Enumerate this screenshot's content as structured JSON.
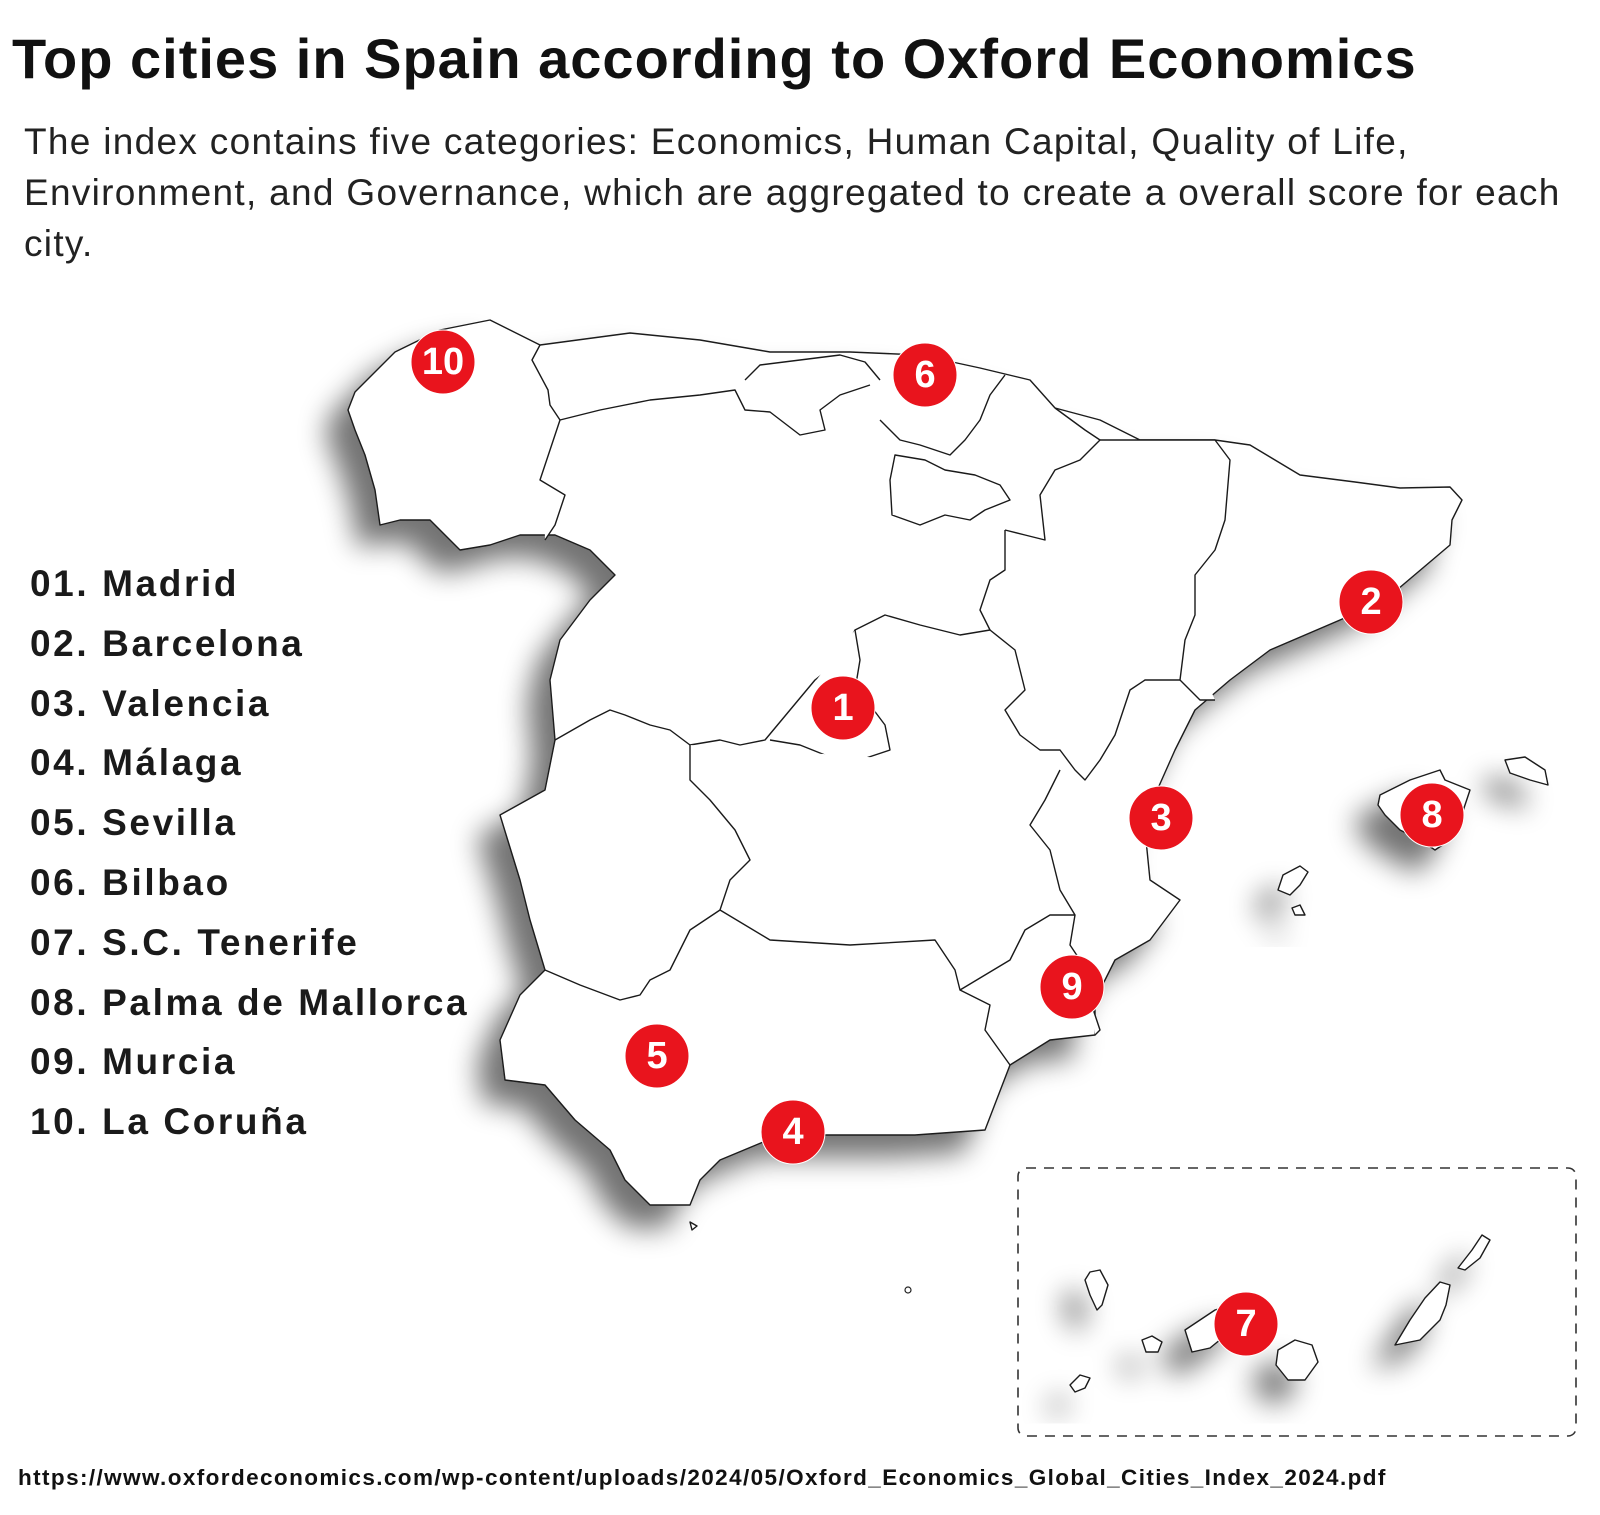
{
  "header": {
    "title": "Top cities in Spain according to Oxford Economics",
    "subtitle": "The index contains five categories: Economics, Human Capital, Quality of Life, Environment, and Governance, which are aggregated to create a overall score for each city."
  },
  "ranking": [
    {
      "rank": "01.",
      "city": "Madrid"
    },
    {
      "rank": "02.",
      "city": "Barcelona"
    },
    {
      "rank": "03.",
      "city": "Valencia"
    },
    {
      "rank": "04.",
      "city": "Málaga"
    },
    {
      "rank": "05.",
      "city": "Sevilla"
    },
    {
      "rank": "06.",
      "city": "Bilbao"
    },
    {
      "rank": "07.",
      "city": "S.C. Tenerife"
    },
    {
      "rank": "08.",
      "city": "Palma de Mallorca"
    },
    {
      "rank": "09.",
      "city": "Murcia"
    },
    {
      "rank": "10.",
      "city": "La Coruña"
    }
  ],
  "markers": [
    "1",
    "2",
    "3",
    "4",
    "5",
    "6",
    "7",
    "8",
    "9",
    "10"
  ],
  "source": "https://www.oxfordeconomics.com/wp-content/uploads/2024/05/Oxford_Economics_Global_Cities_Index_2024.pdf",
  "colors": {
    "marker": "#e9141d",
    "outline": "#1a1a1a",
    "background": "#ffffff"
  }
}
